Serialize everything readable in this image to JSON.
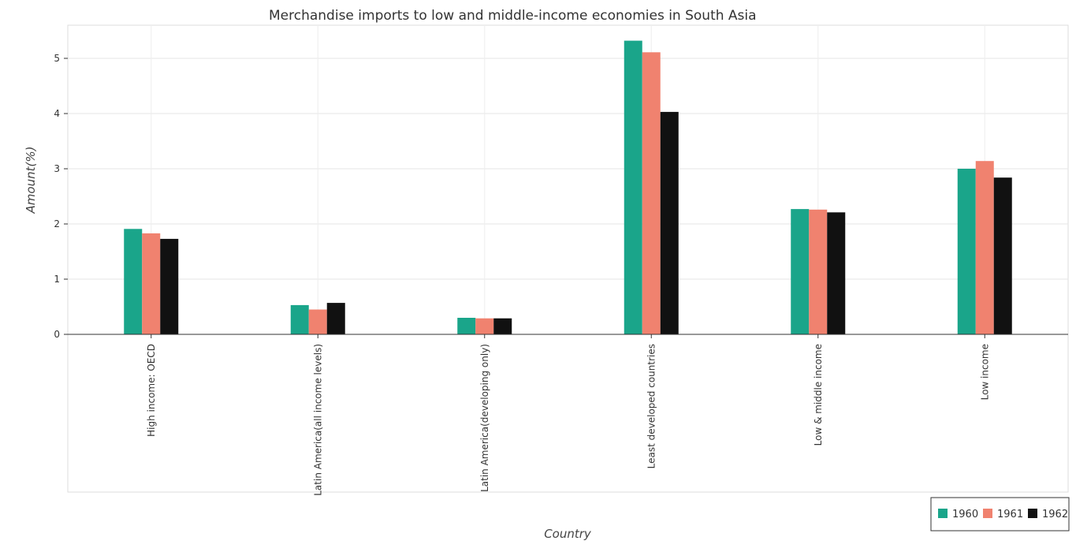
{
  "chart_data": {
    "type": "bar",
    "title": "Merchandise imports to low and middle-income economies in South Asia",
    "xlabel": "Country",
    "ylabel": "Amount(%)",
    "ylim": [
      0,
      5.6
    ],
    "yticks": [
      0,
      1,
      2,
      3,
      4,
      5
    ],
    "ytick_labels": [
      "0",
      "1",
      "2",
      "3",
      "4",
      "5"
    ],
    "grid": true,
    "legend_position": "bottom-right",
    "categories": [
      "High income: OECD",
      "Latin America(all income levels)",
      "Latin America(developing only)",
      "Least developed countries",
      "Low & middle income",
      "Low income"
    ],
    "series": [
      {
        "name": "1960",
        "color": "#1aa58a",
        "values": [
          1.91,
          0.53,
          0.3,
          5.32,
          2.27,
          3.0
        ]
      },
      {
        "name": "1961",
        "color": "#f0826f",
        "values": [
          1.83,
          0.45,
          0.29,
          5.11,
          2.26,
          3.14
        ]
      },
      {
        "name": "1962",
        "color": "#111111",
        "values": [
          1.73,
          0.57,
          0.29,
          4.03,
          2.21,
          2.84
        ]
      }
    ]
  }
}
